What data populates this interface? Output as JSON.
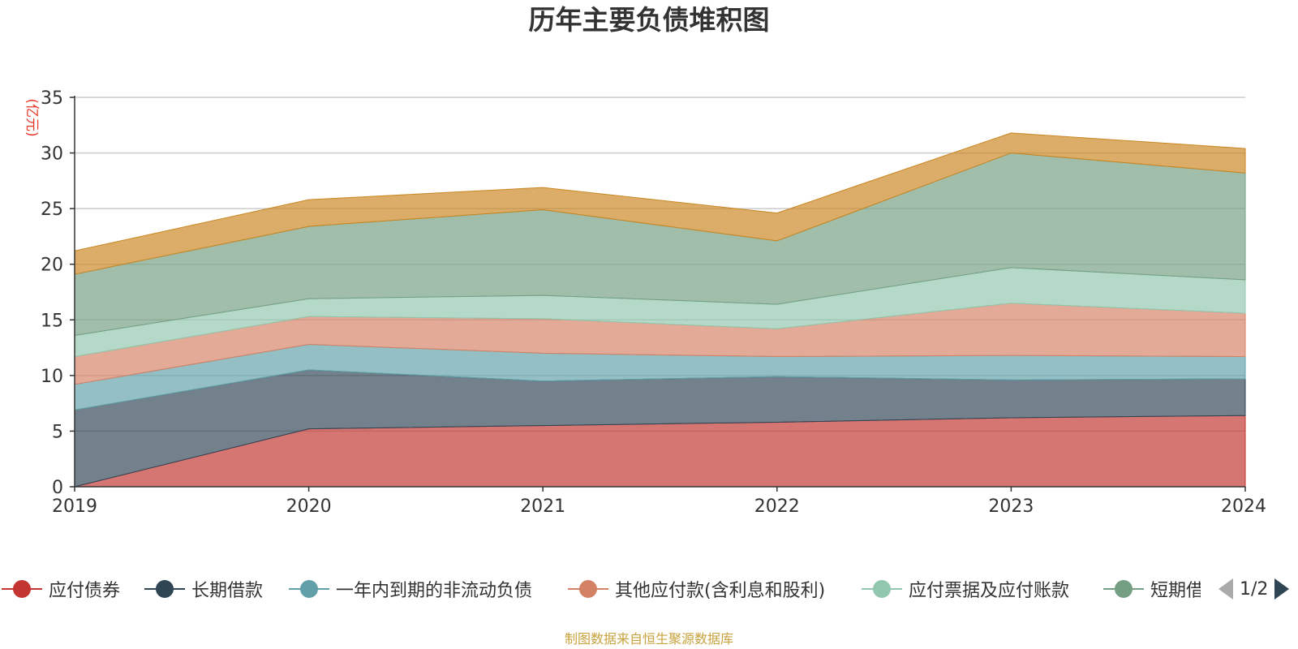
{
  "chart_data": {
    "type": "area",
    "title": "历年主要负债堆积图",
    "ylabel": "(亿元)",
    "xlabel": "",
    "ylim": [
      0,
      35
    ],
    "yticks": [
      0,
      5,
      10,
      15,
      20,
      25,
      30,
      35
    ],
    "categories": [
      "2019",
      "2020",
      "2021",
      "2022",
      "2023",
      "2024"
    ],
    "stacked": true,
    "grid": true,
    "legend_position": "bottom",
    "series": [
      {
        "name": "应付债券",
        "color": "#c23531",
        "values": [
          0.0,
          5.2,
          5.5,
          5.8,
          6.2,
          6.4
        ]
      },
      {
        "name": "长期借款",
        "color": "#2f4554",
        "values": [
          6.9,
          5.3,
          4.0,
          4.1,
          3.4,
          3.3
        ]
      },
      {
        "name": "一年内到期的非流动负债",
        "color": "#61a0a8",
        "values": [
          2.3,
          2.3,
          2.5,
          1.8,
          2.2,
          2.0
        ]
      },
      {
        "name": "其他应付款(含利息和股利)",
        "color": "#d48265",
        "values": [
          2.5,
          2.5,
          3.1,
          2.5,
          4.7,
          3.9
        ]
      },
      {
        "name": "应付票据及应付账款",
        "color": "#91c7ae",
        "values": [
          1.9,
          1.6,
          2.1,
          2.2,
          3.2,
          3.0
        ]
      },
      {
        "name": "短期借款",
        "color": "#749f83",
        "values": [
          5.5,
          6.5,
          7.7,
          5.7,
          10.3,
          9.6
        ]
      },
      {
        "name": "",
        "color": "#ca8622",
        "values": [
          2.1,
          2.4,
          2.0,
          2.5,
          1.8,
          2.2
        ]
      }
    ]
  },
  "legend": {
    "page_indicator": "1/2",
    "prev_icon": "triangle-left-icon",
    "next_icon": "triangle-right-icon",
    "inactive_color": "#aaaaaa",
    "active_color": "#2f4554"
  },
  "source_note": "制图数据来自恒生聚源数据库"
}
